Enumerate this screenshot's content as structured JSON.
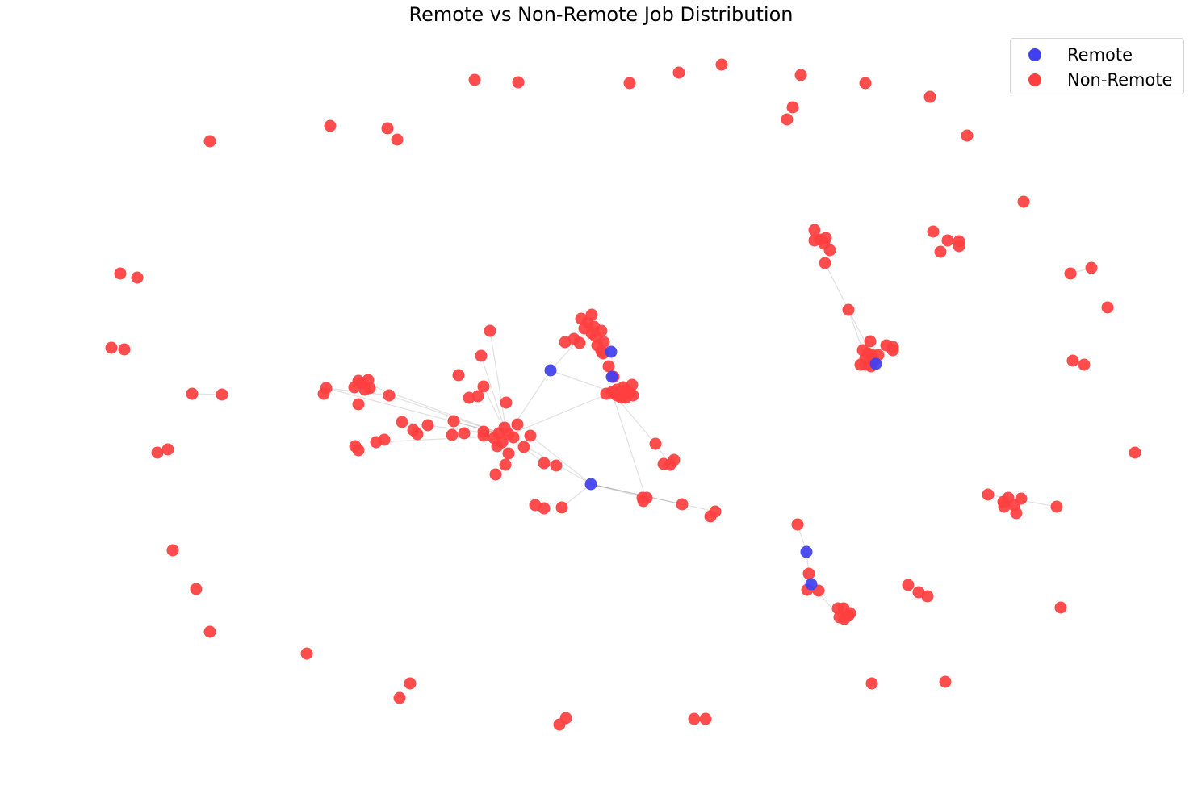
{
  "chart_data": {
    "type": "scatter",
    "title": "Remote vs Non-Remote Job Distribution",
    "axes_visible": false,
    "grid": false,
    "legend_position": "top-right",
    "series": [
      {
        "name": "Remote",
        "color": "#4040f0",
        "points": [
          [
            682,
            459
          ],
          [
            732,
            600
          ],
          [
            999,
            684
          ],
          [
            1005,
            724
          ],
          [
            757,
            436
          ],
          [
            758,
            467
          ],
          [
            1085,
            451
          ]
        ]
      },
      {
        "name": "Non-Remote",
        "color": "#ff3f3f",
        "points": [
          [
            588,
            99
          ],
          [
            642,
            102
          ],
          [
            780,
            103
          ],
          [
            841,
            90
          ],
          [
            894,
            80
          ],
          [
            992,
            93
          ],
          [
            1072,
            103
          ],
          [
            1152,
            120
          ],
          [
            982,
            133
          ],
          [
            975,
            148
          ],
          [
            1198,
            168
          ],
          [
            409,
            156
          ],
          [
            480,
            159
          ],
          [
            492,
            173
          ],
          [
            260,
            175
          ],
          [
            1268,
            250
          ],
          [
            149,
            339
          ],
          [
            170,
            344
          ],
          [
            138,
            431
          ],
          [
            154,
            433
          ],
          [
            1156,
            287
          ],
          [
            1174,
            298
          ],
          [
            1188,
            299
          ],
          [
            1188,
            305
          ],
          [
            1165,
            312
          ],
          [
            1326,
            339
          ],
          [
            1352,
            332
          ],
          [
            1372,
            381
          ],
          [
            1329,
            447
          ],
          [
            1343,
            452
          ],
          [
            1009,
            285
          ],
          [
            1023,
            295
          ],
          [
            1016,
            297
          ],
          [
            1009,
            298
          ],
          [
            1021,
            302
          ],
          [
            1028,
            310
          ],
          [
            1022,
            326
          ],
          [
            1051,
            384
          ],
          [
            1078,
            423
          ],
          [
            1098,
            428
          ],
          [
            1106,
            430
          ],
          [
            1106,
            434
          ],
          [
            1069,
            434
          ],
          [
            1075,
            438
          ],
          [
            1080,
            440
          ],
          [
            1088,
            440
          ],
          [
            1072,
            444
          ],
          [
            1082,
            447
          ],
          [
            1066,
            452
          ],
          [
            1072,
            452
          ],
          [
            1079,
            454
          ],
          [
            238,
            488
          ],
          [
            275,
            489
          ],
          [
            404,
            481
          ],
          [
            401,
            488
          ],
          [
            444,
            472
          ],
          [
            456,
            471
          ],
          [
            448,
            475
          ],
          [
            439,
            480
          ],
          [
            452,
            483
          ],
          [
            458,
            481
          ],
          [
            482,
            490
          ],
          [
            444,
            501
          ],
          [
            498,
            523
          ],
          [
            530,
            527
          ],
          [
            512,
            533
          ],
          [
            517,
            538
          ],
          [
            440,
            553
          ],
          [
            444,
            558
          ],
          [
            466,
            548
          ],
          [
            476,
            545
          ],
          [
            560,
            539
          ],
          [
            575,
            537
          ],
          [
            562,
            522
          ],
          [
            599,
            535
          ],
          [
            599,
            540
          ],
          [
            607,
            410
          ],
          [
            596,
            441
          ],
          [
            568,
            465
          ],
          [
            599,
            479
          ],
          [
            581,
            493
          ],
          [
            592,
            491
          ],
          [
            627,
            499
          ],
          [
            625,
            530
          ],
          [
            641,
            526
          ],
          [
            618,
            537
          ],
          [
            630,
            538
          ],
          [
            612,
            543
          ],
          [
            622,
            548
          ],
          [
            636,
            542
          ],
          [
            616,
            553
          ],
          [
            630,
            562
          ],
          [
            649,
            554
          ],
          [
            657,
            540
          ],
          [
            626,
            576
          ],
          [
            614,
            588
          ],
          [
            674,
            574
          ],
          [
            689,
            577
          ],
          [
            663,
            626
          ],
          [
            674,
            630
          ],
          [
            696,
            629
          ],
          [
            812,
            550
          ],
          [
            822,
            575
          ],
          [
            835,
            570
          ],
          [
            830,
            576
          ],
          [
            796,
            617
          ],
          [
            801,
            617
          ],
          [
            797,
            621
          ],
          [
            845,
            625
          ],
          [
            886,
            634
          ],
          [
            880,
            640
          ],
          [
            720,
            395
          ],
          [
            733,
            390
          ],
          [
            728,
            400
          ],
          [
            736,
            405
          ],
          [
            724,
            407
          ],
          [
            733,
            413
          ],
          [
            745,
            410
          ],
          [
            738,
            417
          ],
          [
            700,
            424
          ],
          [
            711,
            420
          ],
          [
            718,
            425
          ],
          [
            740,
            428
          ],
          [
            748,
            424
          ],
          [
            745,
            435
          ],
          [
            747,
            438
          ],
          [
            754,
            454
          ],
          [
            760,
            467
          ],
          [
            783,
            477
          ],
          [
            772,
            480
          ],
          [
            764,
            483
          ],
          [
            760,
            487
          ],
          [
            775,
            484
          ],
          [
            780,
            487
          ],
          [
            768,
            490
          ],
          [
            770,
            493
          ],
          [
            758,
            486
          ],
          [
            751,
            488
          ],
          [
            784,
            490
          ],
          [
            775,
            493
          ],
          [
            764,
            490
          ],
          [
            195,
            561
          ],
          [
            208,
            557
          ],
          [
            214,
            682
          ],
          [
            243,
            730
          ],
          [
            260,
            783
          ],
          [
            380,
            810
          ],
          [
            508,
            847
          ],
          [
            495,
            865
          ],
          [
            701,
            890
          ],
          [
            693,
            898
          ],
          [
            860,
            891
          ],
          [
            874,
            891
          ],
          [
            1406,
            561
          ],
          [
            1224,
            613
          ],
          [
            1249,
            617
          ],
          [
            1265,
            618
          ],
          [
            1243,
            622
          ],
          [
            1256,
            626
          ],
          [
            1244,
            628
          ],
          [
            1309,
            628
          ],
          [
            1259,
            636
          ],
          [
            988,
            650
          ],
          [
            1002,
            711
          ],
          [
            1000,
            731
          ],
          [
            1014,
            732
          ],
          [
            1038,
            754
          ],
          [
            1045,
            754
          ],
          [
            1053,
            760
          ],
          [
            1040,
            765
          ],
          [
            1051,
            763
          ],
          [
            1046,
            767
          ],
          [
            1125,
            725
          ],
          [
            1138,
            734
          ],
          [
            1149,
            739
          ],
          [
            1314,
            753
          ],
          [
            1080,
            847
          ],
          [
            1171,
            845
          ]
        ]
      }
    ],
    "edges": [
      [
        682,
        459,
        725,
        412
      ],
      [
        682,
        459,
        758,
        486
      ],
      [
        682,
        459,
        628,
        540
      ],
      [
        732,
        600,
        628,
        540
      ],
      [
        732,
        600,
        657,
        540
      ],
      [
        732,
        600,
        800,
        617
      ],
      [
        732,
        600,
        845,
        625
      ],
      [
        732,
        600,
        886,
        634
      ],
      [
        732,
        600,
        696,
        629
      ],
      [
        628,
        540,
        404,
        481
      ],
      [
        628,
        540,
        444,
        472
      ],
      [
        628,
        540,
        482,
        490
      ],
      [
        628,
        540,
        498,
        523
      ],
      [
        628,
        540,
        562,
        522
      ],
      [
        628,
        540,
        607,
        410
      ],
      [
        628,
        540,
        596,
        441
      ],
      [
        628,
        540,
        599,
        479
      ],
      [
        628,
        540,
        758,
        486
      ],
      [
        628,
        540,
        466,
        548
      ],
      [
        628,
        540,
        674,
        574
      ],
      [
        758,
        486,
        812,
        550
      ],
      [
        812,
        550,
        830,
        576
      ],
      [
        758,
        486,
        800,
        617
      ],
      [
        757,
        436,
        760,
        467
      ],
      [
        1051,
        384,
        1022,
        326
      ],
      [
        1051,
        384,
        1072,
        444
      ],
      [
        1051,
        384,
        1080,
        440
      ],
      [
        238,
        488,
        275,
        489
      ],
      [
        404,
        481,
        482,
        490
      ],
      [
        1224,
        613,
        1309,
        628
      ],
      [
        988,
        650,
        999,
        684
      ],
      [
        999,
        684,
        1002,
        711
      ],
      [
        1005,
        724,
        1040,
        765
      ],
      [
        1326,
        339,
        1352,
        332
      ]
    ]
  }
}
